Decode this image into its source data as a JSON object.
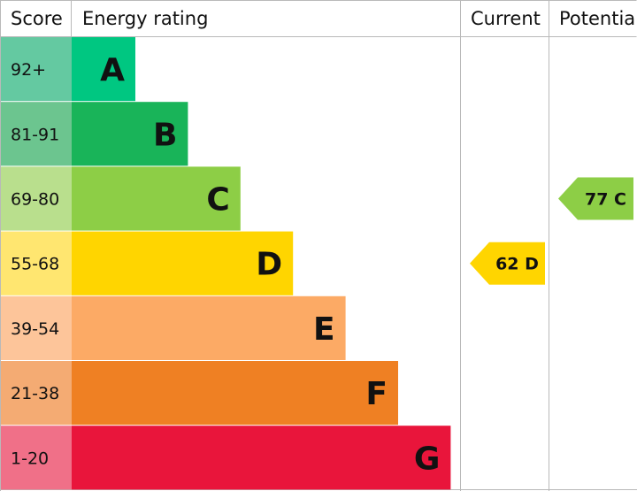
{
  "headers": {
    "score": "Score",
    "energy_rating": "Energy rating",
    "current": "Current",
    "potential": "Potential"
  },
  "chart_data": {
    "type": "bar",
    "bands": [
      {
        "score": "92+",
        "letter": "A",
        "color": "#00c781",
        "score_bg": "#64c9a1",
        "length": 1
      },
      {
        "score": "81-91",
        "letter": "B",
        "color": "#19b459",
        "score_bg": "#6cc58f",
        "length": 2
      },
      {
        "score": "69-80",
        "letter": "C",
        "color": "#8dce46",
        "score_bg": "#b9df8d",
        "length": 3
      },
      {
        "score": "55-68",
        "letter": "D",
        "color": "#ffd500",
        "score_bg": "#ffe670",
        "length": 4
      },
      {
        "score": "39-54",
        "letter": "E",
        "color": "#fcaa65",
        "score_bg": "#fdc59a",
        "length": 5
      },
      {
        "score": "21-38",
        "letter": "F",
        "color": "#ef8023",
        "score_bg": "#f4ab73",
        "length": 6
      },
      {
        "score": "1-20",
        "letter": "G",
        "color": "#e9153b",
        "score_bg": "#f07088",
        "length": 7
      }
    ],
    "current": {
      "value": 62,
      "letter": "D",
      "label": "62 D",
      "color": "#ffd500"
    },
    "potential": {
      "value": 77,
      "letter": "C",
      "label": "77 C",
      "color": "#8dce46"
    }
  }
}
